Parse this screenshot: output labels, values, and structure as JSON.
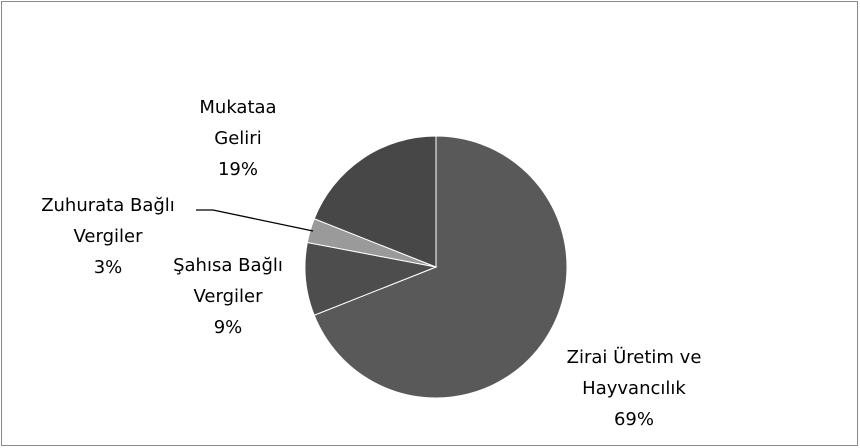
{
  "chart_data": {
    "type": "pie",
    "categories": [
      "Zirai Üretim ve Hayvancılık",
      "Şahısa Bağlı Vergiler",
      "Zuhurata Bağlı Vergiler",
      "Mukataa Geliri"
    ],
    "values": [
      69,
      9,
      3,
      19
    ],
    "value_labels": [
      "69%",
      "9%",
      "3%",
      "19%"
    ],
    "colors": [
      "#595959",
      "#4d4d4d",
      "#9a9a9a",
      "#474747"
    ]
  }
}
